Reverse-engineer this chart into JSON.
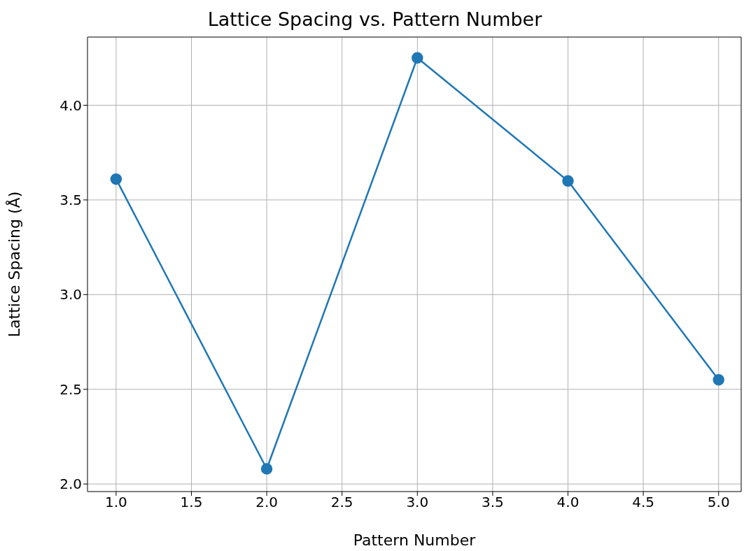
{
  "chart_data": {
    "type": "line",
    "title": "Lattice Spacing vs. Pattern Number",
    "xlabel": "Pattern Number",
    "ylabel": "Lattice Spacing (Å)",
    "x": [
      1,
      2,
      3,
      4,
      5
    ],
    "series": [
      {
        "color": "#1f77b4",
        "values": [
          3.61,
          2.08,
          4.25,
          3.6,
          2.55
        ]
      }
    ],
    "xlim": [
      0.81,
      5.15
    ],
    "xticks": [
      {
        "value": 1,
        "label": "1.0"
      },
      {
        "value": 1.5,
        "label": "1.5"
      },
      {
        "value": 2,
        "label": "2.0"
      },
      {
        "value": 2.5,
        "label": "2.5"
      },
      {
        "value": 3,
        "label": "3.0"
      },
      {
        "value": 3.5,
        "label": "3.5"
      },
      {
        "value": 4,
        "label": "4.0"
      },
      {
        "value": 4.5,
        "label": "4.5"
      },
      {
        "value": 5,
        "label": "5.0"
      }
    ],
    "ylim": [
      1.96,
      4.36
    ],
    "yticks": [
      {
        "value": 2,
        "label": "2.0"
      },
      {
        "value": 2.5,
        "label": "2.5"
      },
      {
        "value": 3,
        "label": "3.0"
      },
      {
        "value": 3.5,
        "label": "3.5"
      },
      {
        "value": 4,
        "label": "4.0"
      }
    ],
    "grid": true,
    "marker": "circle",
    "line_style": "solid"
  }
}
